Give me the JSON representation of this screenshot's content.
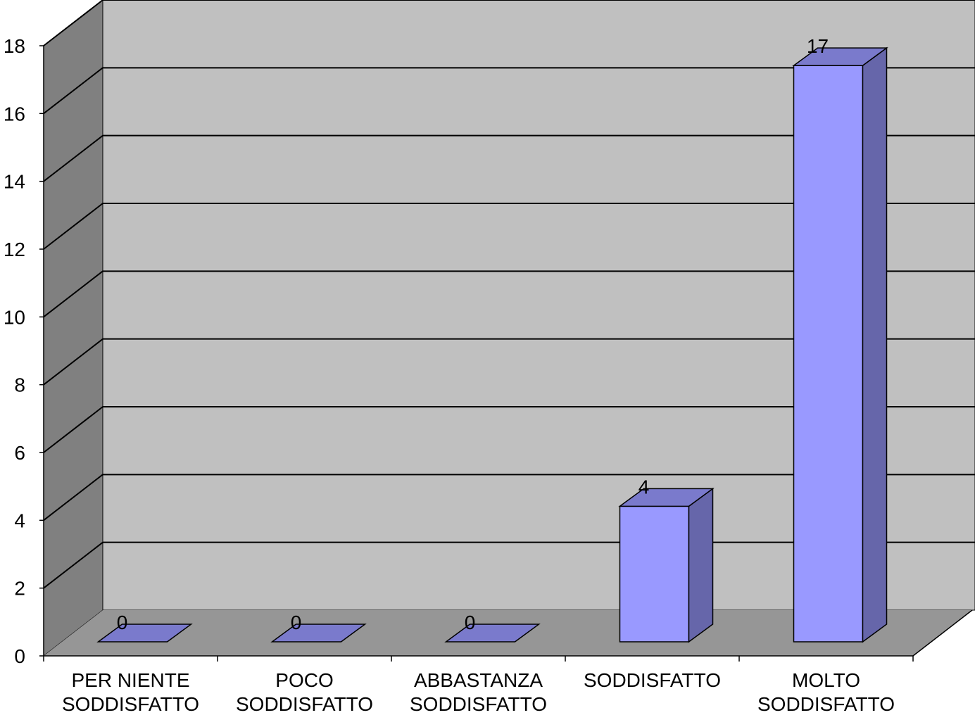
{
  "chart_data": {
    "type": "bar",
    "style": "3d-column",
    "categories": [
      [
        "PER NIENTE",
        "SODDISFATTO"
      ],
      [
        "POCO",
        "SODDISFATTO"
      ],
      [
        "ABBASTANZA",
        "SODDISFATTO"
      ],
      [
        "SODDISFATTO"
      ],
      [
        "MOLTO",
        "SODDISFATTO"
      ]
    ],
    "values": [
      0,
      0,
      0,
      4,
      17
    ],
    "data_labels": [
      "0",
      "0",
      "0",
      "4",
      "17"
    ],
    "ylim": [
      0,
      18
    ],
    "yticks": [
      "0",
      "2",
      "4",
      "6",
      "8",
      "10",
      "12",
      "14",
      "16",
      "18"
    ],
    "grid": true,
    "legend": "none",
    "title": "",
    "xlabel": "",
    "ylabel": "",
    "colors": {
      "back_wall": "#c0c0c0",
      "side_wall": "#808080",
      "floor": "#969696",
      "bar_front": "#9999ff",
      "bar_top": "#7a7acc",
      "bar_side": "#6666aa",
      "gridline": "#000000"
    }
  }
}
